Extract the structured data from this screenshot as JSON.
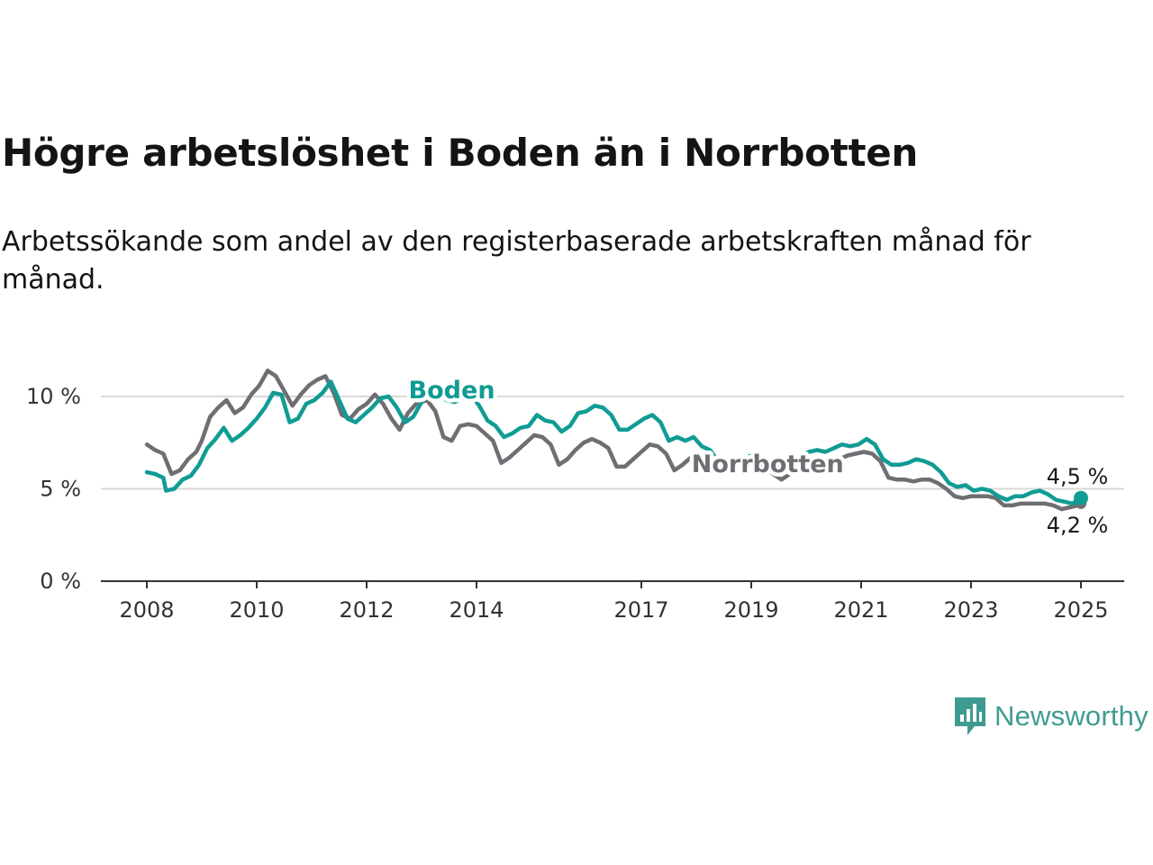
{
  "title": "Högre arbetslöshet i Boden än i Norrbotten",
  "subtitle": "Arbetssökande som andel av den registerbaserade arbetskraften månad för månad.",
  "brand": {
    "name": "Newsworthy",
    "icon": "newsworthy-logo-icon",
    "color": "#3f9b91"
  },
  "chart_data": {
    "type": "line",
    "title": "Högre arbetslöshet i Boden än i Norrbotten",
    "xlabel": "",
    "ylabel": "",
    "xlim": [
      2008.0,
      2025.0
    ],
    "ylim": [
      0,
      10
    ],
    "grid": true,
    "y_ticks": [
      0,
      5,
      10
    ],
    "y_tick_labels": [
      "0 %",
      "5 %",
      "10 %"
    ],
    "x_ticks": [
      2008,
      2010,
      2012,
      2014,
      2017,
      2019,
      2021,
      2023,
      2025
    ],
    "x_tick_labels": [
      "2008",
      "2010",
      "2012",
      "2014",
      "2017",
      "2019",
      "2021",
      "2023",
      "2025"
    ],
    "series": [
      {
        "name": "Norrbotten",
        "label": "Norrbotten",
        "color": "#6e6e73",
        "end_label": "4,2 %",
        "points": [
          [
            2008.0,
            7.4
          ],
          [
            2008.15,
            7.1
          ],
          [
            2008.3,
            6.9
          ],
          [
            2008.45,
            5.8
          ],
          [
            2008.6,
            6.0
          ],
          [
            2008.75,
            6.6
          ],
          [
            2008.9,
            7.0
          ],
          [
            2009.0,
            7.6
          ],
          [
            2009.15,
            8.9
          ],
          [
            2009.3,
            9.4
          ],
          [
            2009.45,
            9.8
          ],
          [
            2009.6,
            9.1
          ],
          [
            2009.75,
            9.4
          ],
          [
            2009.9,
            10.1
          ],
          [
            2010.05,
            10.6
          ],
          [
            2010.2,
            11.4
          ],
          [
            2010.35,
            11.1
          ],
          [
            2010.5,
            10.3
          ],
          [
            2010.65,
            9.5
          ],
          [
            2010.8,
            10.1
          ],
          [
            2010.95,
            10.6
          ],
          [
            2011.1,
            10.9
          ],
          [
            2011.25,
            11.1
          ],
          [
            2011.4,
            10.2
          ],
          [
            2011.55,
            9.0
          ],
          [
            2011.7,
            8.8
          ],
          [
            2011.85,
            9.3
          ],
          [
            2012.0,
            9.6
          ],
          [
            2012.15,
            10.1
          ],
          [
            2012.3,
            9.6
          ],
          [
            2012.45,
            8.8
          ],
          [
            2012.6,
            8.2
          ],
          [
            2012.75,
            9.1
          ],
          [
            2012.9,
            9.6
          ],
          [
            2013.1,
            9.8
          ],
          [
            2013.25,
            9.2
          ],
          [
            2013.4,
            7.8
          ],
          [
            2013.55,
            7.6
          ],
          [
            2013.7,
            8.4
          ],
          [
            2013.85,
            8.5
          ],
          [
            2014.0,
            8.4
          ],
          [
            2014.15,
            8.0
          ],
          [
            2014.3,
            7.6
          ],
          [
            2014.45,
            6.4
          ],
          [
            2014.6,
            6.7
          ],
          [
            2014.75,
            7.1
          ],
          [
            2014.9,
            7.5
          ],
          [
            2015.05,
            7.9
          ],
          [
            2015.2,
            7.8
          ],
          [
            2015.35,
            7.4
          ],
          [
            2015.5,
            6.3
          ],
          [
            2015.65,
            6.6
          ],
          [
            2015.8,
            7.1
          ],
          [
            2015.95,
            7.5
          ],
          [
            2016.1,
            7.7
          ],
          [
            2016.25,
            7.5
          ],
          [
            2016.4,
            7.2
          ],
          [
            2016.55,
            6.2
          ],
          [
            2016.7,
            6.2
          ],
          [
            2016.85,
            6.6
          ],
          [
            2017.0,
            7.0
          ],
          [
            2017.15,
            7.4
          ],
          [
            2017.3,
            7.3
          ],
          [
            2017.45,
            6.9
          ],
          [
            2017.6,
            6.0
          ],
          [
            2017.75,
            6.3
          ],
          [
            2017.9,
            6.7
          ],
          [
            2018.05,
            6.9
          ],
          [
            2018.2,
            6.8
          ],
          [
            2018.35,
            6.7
          ],
          [
            2018.5,
            6.4
          ],
          [
            2018.65,
            5.9
          ],
          [
            2018.8,
            6.0
          ],
          [
            2018.95,
            6.2
          ],
          [
            2019.1,
            6.3
          ],
          [
            2019.25,
            6.1
          ],
          [
            2019.4,
            5.8
          ],
          [
            2019.55,
            5.5
          ],
          [
            2019.7,
            5.8
          ],
          [
            2019.85,
            6.1
          ],
          [
            2020.0,
            6.4
          ],
          [
            2020.15,
            6.6
          ],
          [
            2020.3,
            6.4
          ],
          [
            2020.45,
            6.3
          ],
          [
            2020.6,
            6.6
          ],
          [
            2020.75,
            6.8
          ],
          [
            2020.9,
            6.9
          ],
          [
            2021.05,
            7.0
          ],
          [
            2021.2,
            6.9
          ],
          [
            2021.35,
            6.5
          ],
          [
            2021.5,
            5.6
          ],
          [
            2021.65,
            5.5
          ],
          [
            2021.8,
            5.5
          ],
          [
            2021.95,
            5.4
          ],
          [
            2022.1,
            5.5
          ],
          [
            2022.25,
            5.5
          ],
          [
            2022.4,
            5.3
          ],
          [
            2022.55,
            5.0
          ],
          [
            2022.7,
            4.6
          ],
          [
            2022.85,
            4.5
          ],
          [
            2023.0,
            4.6
          ],
          [
            2023.15,
            4.6
          ],
          [
            2023.3,
            4.6
          ],
          [
            2023.45,
            4.5
          ],
          [
            2023.6,
            4.1
          ],
          [
            2023.75,
            4.1
          ],
          [
            2023.9,
            4.2
          ],
          [
            2024.05,
            4.2
          ],
          [
            2024.2,
            4.2
          ],
          [
            2024.35,
            4.2
          ],
          [
            2024.5,
            4.1
          ],
          [
            2024.65,
            3.9
          ],
          [
            2024.8,
            4.0
          ],
          [
            2024.95,
            4.1
          ],
          [
            2025.0,
            4.2
          ]
        ]
      },
      {
        "name": "Boden",
        "label": "Boden",
        "color": "#109c94",
        "end_label": "4,5 %",
        "points": [
          [
            2008.0,
            5.9
          ],
          [
            2008.15,
            5.8
          ],
          [
            2008.3,
            5.6
          ],
          [
            2008.35,
            4.9
          ],
          [
            2008.5,
            5.0
          ],
          [
            2008.65,
            5.5
          ],
          [
            2008.8,
            5.7
          ],
          [
            2008.95,
            6.3
          ],
          [
            2009.1,
            7.2
          ],
          [
            2009.25,
            7.7
          ],
          [
            2009.4,
            8.3
          ],
          [
            2009.55,
            7.6
          ],
          [
            2009.7,
            7.9
          ],
          [
            2009.85,
            8.3
          ],
          [
            2010.0,
            8.8
          ],
          [
            2010.15,
            9.4
          ],
          [
            2010.3,
            10.2
          ],
          [
            2010.45,
            10.1
          ],
          [
            2010.6,
            8.6
          ],
          [
            2010.75,
            8.8
          ],
          [
            2010.9,
            9.6
          ],
          [
            2011.05,
            9.8
          ],
          [
            2011.2,
            10.2
          ],
          [
            2011.35,
            10.8
          ],
          [
            2011.5,
            9.8
          ],
          [
            2011.65,
            8.8
          ],
          [
            2011.8,
            8.6
          ],
          [
            2011.95,
            9.0
          ],
          [
            2012.1,
            9.4
          ],
          [
            2012.25,
            9.9
          ],
          [
            2012.4,
            10.0
          ],
          [
            2012.55,
            9.4
          ],
          [
            2012.7,
            8.6
          ],
          [
            2012.85,
            8.9
          ],
          [
            2013.0,
            9.7
          ],
          [
            2013.15,
            10.6
          ],
          [
            2013.3,
            10.3
          ],
          [
            2013.45,
            9.8
          ],
          [
            2013.6,
            9.7
          ],
          [
            2013.75,
            9.9
          ],
          [
            2013.9,
            10.1
          ],
          [
            2014.05,
            9.5
          ],
          [
            2014.2,
            8.7
          ],
          [
            2014.35,
            8.4
          ],
          [
            2014.5,
            7.8
          ],
          [
            2014.65,
            8.0
          ],
          [
            2014.8,
            8.3
          ],
          [
            2014.95,
            8.4
          ],
          [
            2015.1,
            9.0
          ],
          [
            2015.25,
            8.7
          ],
          [
            2015.4,
            8.6
          ],
          [
            2015.55,
            8.1
          ],
          [
            2015.7,
            8.4
          ],
          [
            2015.85,
            9.1
          ],
          [
            2016.0,
            9.2
          ],
          [
            2016.15,
            9.5
          ],
          [
            2016.3,
            9.4
          ],
          [
            2016.45,
            9.0
          ],
          [
            2016.6,
            8.2
          ],
          [
            2016.75,
            8.2
          ],
          [
            2016.9,
            8.5
          ],
          [
            2017.05,
            8.8
          ],
          [
            2017.2,
            9.0
          ],
          [
            2017.35,
            8.6
          ],
          [
            2017.5,
            7.6
          ],
          [
            2017.65,
            7.8
          ],
          [
            2017.8,
            7.6
          ],
          [
            2017.95,
            7.8
          ],
          [
            2018.1,
            7.3
          ],
          [
            2018.25,
            7.1
          ],
          [
            2018.4,
            6.5
          ],
          [
            2018.55,
            6.0
          ],
          [
            2018.7,
            6.3
          ],
          [
            2018.85,
            6.6
          ],
          [
            2019.0,
            6.8
          ],
          [
            2019.15,
            6.7
          ],
          [
            2019.3,
            6.3
          ],
          [
            2019.45,
            6.2
          ],
          [
            2019.6,
            6.4
          ],
          [
            2019.75,
            6.5
          ],
          [
            2019.9,
            6.8
          ],
          [
            2020.05,
            7.0
          ],
          [
            2020.2,
            7.1
          ],
          [
            2020.35,
            7.0
          ],
          [
            2020.5,
            7.2
          ],
          [
            2020.65,
            7.4
          ],
          [
            2020.8,
            7.3
          ],
          [
            2020.95,
            7.4
          ],
          [
            2021.1,
            7.7
          ],
          [
            2021.25,
            7.4
          ],
          [
            2021.4,
            6.6
          ],
          [
            2021.55,
            6.3
          ],
          [
            2021.7,
            6.3
          ],
          [
            2021.85,
            6.4
          ],
          [
            2022.0,
            6.6
          ],
          [
            2022.15,
            6.5
          ],
          [
            2022.3,
            6.3
          ],
          [
            2022.45,
            5.9
          ],
          [
            2022.6,
            5.3
          ],
          [
            2022.75,
            5.1
          ],
          [
            2022.9,
            5.2
          ],
          [
            2023.05,
            4.9
          ],
          [
            2023.2,
            5.0
          ],
          [
            2023.35,
            4.9
          ],
          [
            2023.5,
            4.6
          ],
          [
            2023.65,
            4.4
          ],
          [
            2023.8,
            4.6
          ],
          [
            2023.95,
            4.6
          ],
          [
            2024.1,
            4.8
          ],
          [
            2024.25,
            4.9
          ],
          [
            2024.4,
            4.7
          ],
          [
            2024.55,
            4.4
          ],
          [
            2024.7,
            4.3
          ],
          [
            2024.85,
            4.2
          ],
          [
            2025.0,
            4.5
          ]
        ]
      }
    ]
  }
}
